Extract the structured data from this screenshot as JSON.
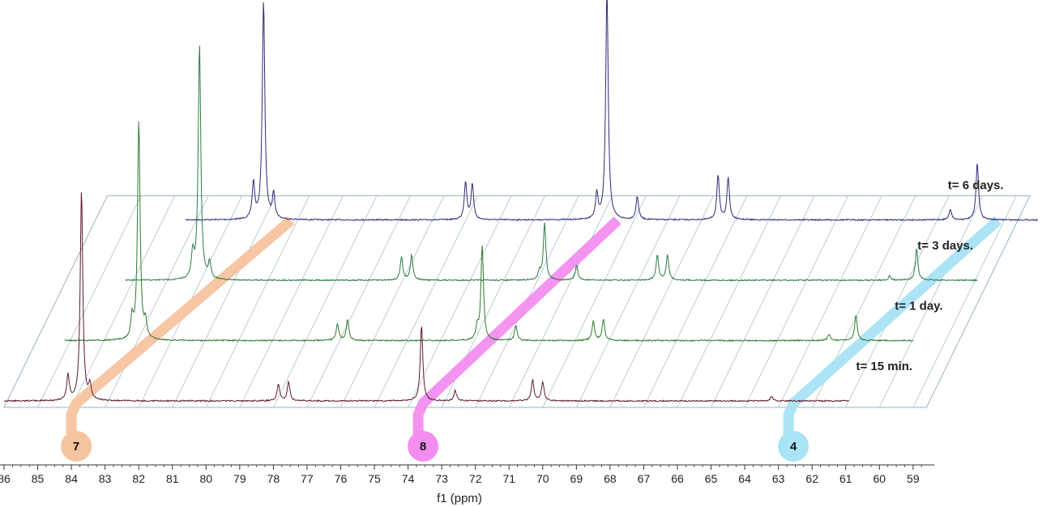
{
  "chart_data": {
    "type": "line",
    "subtype": "stacked-3d-nmr-spectra",
    "xlabel": "f1 (ppm)",
    "x_axis_reversed": true,
    "xlim": [
      86,
      58.6
    ],
    "x_ticks": [
      86,
      85,
      84,
      83,
      82,
      81,
      80,
      79,
      78,
      77,
      76,
      75,
      74,
      73,
      72,
      71,
      70,
      69,
      68,
      67,
      66,
      65,
      64,
      63,
      62,
      61,
      60,
      59
    ],
    "x_tick_labels": [
      "86",
      "85",
      "84",
      "83",
      "82",
      "81",
      "80",
      "79",
      "78",
      "77",
      "76",
      "75",
      "74",
      "73",
      "72",
      "71",
      "70",
      "69",
      "68",
      "67",
      "66",
      "65",
      "64",
      "63",
      "62",
      "61",
      "60",
      "59"
    ],
    "grid": "oblique perspective grid",
    "series": [
      {
        "name": "t= 15 min.",
        "color": "#5a1a2e",
        "baseline_y": 0,
        "peaks": [
          {
            "x": 84.1,
            "y": 0.12
          },
          {
            "x": 83.7,
            "y": 1.0
          },
          {
            "x": 83.45,
            "y": 0.07
          },
          {
            "x": 77.85,
            "y": 0.08
          },
          {
            "x": 77.55,
            "y": 0.09
          },
          {
            "x": 73.6,
            "y": 0.36
          },
          {
            "x": 72.6,
            "y": 0.05
          },
          {
            "x": 70.3,
            "y": 0.1
          },
          {
            "x": 70.0,
            "y": 0.09
          },
          {
            "x": 63.2,
            "y": 0.02
          }
        ]
      },
      {
        "name": "t= 1 day.",
        "color": "#2f7a2e",
        "baseline_y": 1,
        "peaks": [
          {
            "x": 83.1,
            "y": 0.1
          },
          {
            "x": 82.9,
            "y": 1.04
          },
          {
            "x": 82.7,
            "y": 0.08
          },
          {
            "x": 77.0,
            "y": 0.08
          },
          {
            "x": 76.7,
            "y": 0.1
          },
          {
            "x": 72.85,
            "y": 0.06
          },
          {
            "x": 72.7,
            "y": 0.45
          },
          {
            "x": 71.7,
            "y": 0.07
          },
          {
            "x": 69.4,
            "y": 0.09
          },
          {
            "x": 69.1,
            "y": 0.1
          },
          {
            "x": 62.4,
            "y": 0.03
          },
          {
            "x": 61.6,
            "y": 0.12
          }
        ]
      },
      {
        "name": "t= 3 days.",
        "color": "#2e7a45",
        "baseline_y": 2,
        "peaks": [
          {
            "x": 82.2,
            "y": 0.12
          },
          {
            "x": 82.0,
            "y": 1.12
          },
          {
            "x": 81.7,
            "y": 0.08
          },
          {
            "x": 76.0,
            "y": 0.11
          },
          {
            "x": 75.7,
            "y": 0.12
          },
          {
            "x": 71.9,
            "y": 0.04
          },
          {
            "x": 71.75,
            "y": 0.27
          },
          {
            "x": 70.8,
            "y": 0.07
          },
          {
            "x": 68.4,
            "y": 0.12
          },
          {
            "x": 68.1,
            "y": 0.12
          },
          {
            "x": 61.5,
            "y": 0.02
          },
          {
            "x": 60.7,
            "y": 0.15
          }
        ]
      },
      {
        "name": "t= 6 days.",
        "color": "#2c2a7a",
        "baseline_y": 3,
        "peaks": [
          {
            "x": 81.3,
            "y": 0.17
          },
          {
            "x": 81.0,
            "y": 1.04
          },
          {
            "x": 80.7,
            "y": 0.12
          },
          {
            "x": 75.0,
            "y": 0.18
          },
          {
            "x": 74.8,
            "y": 0.17
          },
          {
            "x": 71.1,
            "y": 0.12
          },
          {
            "x": 70.8,
            "y": 1.09
          },
          {
            "x": 69.9,
            "y": 0.11
          },
          {
            "x": 67.5,
            "y": 0.21
          },
          {
            "x": 67.2,
            "y": 0.2
          },
          {
            "x": 60.6,
            "y": 0.05
          },
          {
            "x": 59.8,
            "y": 0.27
          }
        ]
      }
    ],
    "markers": [
      {
        "label": "7",
        "color": "#f6c3a0",
        "x_start": 84.0,
        "x_end": 80.3
      },
      {
        "label": "8",
        "color": "#f38ef0",
        "x_start": 73.7,
        "x_end": 70.6
      },
      {
        "label": "4",
        "color": "#a8e3f6",
        "x_start": 62.7,
        "x_end": 59.3
      }
    ]
  }
}
